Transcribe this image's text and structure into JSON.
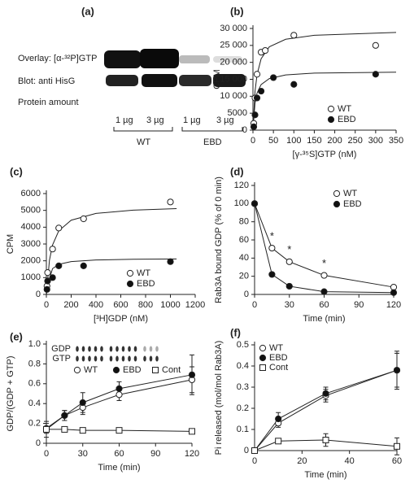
{
  "blot": {
    "label": "(a)",
    "rows": [
      "Overlay: [α-³²P]GTP",
      "Blot: anti HisG",
      "Protein amount"
    ],
    "lanes": [
      "1 µg",
      "3 µg",
      "1 µg",
      "3 µg"
    ],
    "groups": [
      "WT",
      "EBD"
    ]
  },
  "chart_data": [
    {
      "type": "scatter",
      "label": "(b)",
      "x_label": "[γ-³⁵S]GTP (nM)",
      "y_label": "CPM",
      "legend": "lower right",
      "xlim": [
        0,
        350
      ],
      "xticks": [
        0,
        50,
        100,
        150,
        200,
        250,
        300,
        350
      ],
      "ylim": [
        0,
        30000
      ],
      "yticks": [
        0,
        5000,
        {
          "value": 10000,
          "label": "10 000"
        },
        {
          "value": 15000,
          "label": "15 000"
        },
        {
          "value": 20000,
          "label": "20 000"
        },
        {
          "value": 25000,
          "label": "25 000"
        },
        {
          "value": 30000,
          "label": "30 000"
        }
      ],
      "series": [
        {
          "name": "WT",
          "marker": "open",
          "x": [
            2,
            5,
            10,
            20,
            30,
            100,
            300
          ],
          "values": [
            2000,
            9500,
            16500,
            23000,
            23500,
            28000,
            25000
          ]
        },
        {
          "name": "EBD",
          "marker": "filled",
          "x": [
            2,
            5,
            10,
            20,
            50,
            100,
            300
          ],
          "values": [
            1000,
            4500,
            9500,
            11500,
            15500,
            13500,
            16500
          ]
        },
        {
          "marker": "none",
          "line": true,
          "x": [
            0,
            5,
            10,
            20,
            40,
            80,
            150,
            350
          ],
          "values": [
            0,
            11350,
            16390,
            21070,
            24580,
            26820,
            28000,
            28840
          ]
        },
        {
          "marker": "none",
          "line": true,
          "x": [
            0,
            5,
            10,
            20,
            40,
            80,
            150,
            350
          ],
          "values": [
            0,
            7950,
            10940,
            13460,
            15220,
            16280,
            16830,
            17110
          ]
        }
      ]
    },
    {
      "type": "scatter",
      "label": "(c)",
      "x_label": "[³H]GDP (nM)",
      "y_label": "CPM",
      "legend": "lower right",
      "xlim": [
        0,
        1200
      ],
      "xticks": [
        0,
        200,
        400,
        600,
        800,
        1000,
        1200
      ],
      "ylim": [
        0,
        6000
      ],
      "yticks": [
        0,
        1000,
        2000,
        3000,
        4000,
        5000,
        6000
      ],
      "series": [
        {
          "name": "WT",
          "marker": "open",
          "x": [
            5,
            10,
            50,
            100,
            300,
            1000
          ],
          "values": [
            500,
            1300,
            2700,
            3950,
            4500,
            5500
          ]
        },
        {
          "name": "EBD",
          "marker": "filled",
          "x": [
            5,
            10,
            50,
            100,
            300,
            1000
          ],
          "values": [
            300,
            800,
            1000,
            1700,
            1700,
            1950
          ]
        },
        {
          "marker": "none",
          "line": true,
          "x": [
            0,
            25,
            50,
            100,
            200,
            400,
            700,
            1050
          ],
          "values": [
            0,
            2038,
            2944,
            3786,
            4417,
            4818,
            5014,
            5105
          ]
        },
        {
          "marker": "none",
          "line": true,
          "x": [
            0,
            25,
            50,
            100,
            200,
            400,
            700,
            1050
          ],
          "values": [
            0,
            956,
            1536,
            1792,
            1955,
            2048,
            2091,
            2110
          ]
        }
      ]
    },
    {
      "type": "line",
      "label": "(d)",
      "x_label": "Time (min)",
      "y_label": "Rab3A bound GDP (% of 0 min)",
      "legend": "upper right",
      "annotations": [
        "*",
        "*",
        "*"
      ],
      "xlim": [
        0,
        120
      ],
      "xticks": [
        0,
        30,
        60,
        90,
        120
      ],
      "ylim": [
        0,
        120
      ],
      "yticks": [
        0,
        20,
        40,
        60,
        80,
        100,
        120
      ],
      "series": [
        {
          "name": "WT",
          "marker": "open",
          "line": true,
          "x": [
            0,
            15,
            30,
            60,
            120
          ],
          "values": [
            100,
            51,
            36,
            21,
            8
          ]
        },
        {
          "name": "EBD",
          "marker": "filled",
          "line": true,
          "x": [
            0,
            15,
            30,
            60,
            120
          ],
          "values": [
            100,
            22,
            9,
            3,
            2
          ]
        }
      ]
    },
    {
      "type": "line",
      "label": "(e)",
      "x_label": "Time (min)",
      "y_label": "GDP/(GDP + GTP)",
      "legend": "upper left horizontal",
      "inset_labels": [
        "GDP",
        "GTP"
      ],
      "xlim": [
        0,
        120
      ],
      "xticks": [
        0,
        30,
        60,
        90,
        120
      ],
      "ylim": [
        0,
        1
      ],
      "yticks": [
        0,
        0.2,
        0.4,
        0.6,
        0.8,
        {
          "value": 1,
          "label": "1.0"
        }
      ],
      "series": [
        {
          "name": "WT",
          "marker": "open",
          "line": true,
          "x": [
            0,
            15,
            30,
            60,
            120
          ],
          "values": [
            0.14,
            0.28,
            0.36,
            0.49,
            0.64
          ],
          "errors": [
            0.08,
            0.05,
            0.07,
            0.06,
            0.13
          ]
        },
        {
          "name": "EBD",
          "marker": "filled",
          "line": true,
          "x": [
            0,
            15,
            30,
            60,
            120
          ],
          "values": [
            0.15,
            0.28,
            0.41,
            0.55,
            0.69
          ],
          "errors": [
            0.05,
            0.05,
            0.1,
            0.07,
            0.2
          ]
        },
        {
          "name": "Cont",
          "marker": "square",
          "line": true,
          "x": [
            0,
            15,
            30,
            60,
            120
          ],
          "values": [
            0.14,
            0.14,
            0.13,
            0.13,
            0.12
          ],
          "errors": [
            0.01,
            0.01,
            0.01,
            0.01,
            0.01
          ]
        }
      ]
    },
    {
      "type": "line",
      "label": "(f)",
      "x_label": "Time (min)",
      "y_label": "Pi released (mol/mol Rab3A)",
      "legend": "upper left",
      "xlim": [
        0,
        60
      ],
      "xticks": [
        0,
        20,
        40,
        60
      ],
      "ylim": [
        0,
        0.5
      ],
      "yticks": [
        0,
        0.1,
        0.2,
        0.3,
        0.4,
        0.5
      ],
      "series": [
        {
          "name": "WT",
          "marker": "open",
          "line": true,
          "x": [
            0,
            10,
            30,
            60
          ],
          "values": [
            0,
            0.13,
            0.26,
            0.38
          ],
          "errors": [
            0.01,
            0.02,
            0.03,
            0.08
          ]
        },
        {
          "name": "EBD",
          "marker": "filled",
          "line": true,
          "x": [
            0,
            10,
            30,
            60
          ],
          "values": [
            0,
            0.15,
            0.27,
            0.38
          ],
          "errors": [
            0.01,
            0.03,
            0.03,
            0.09
          ]
        },
        {
          "name": "Cont",
          "marker": "square",
          "line": true,
          "x": [
            0,
            10,
            30,
            60
          ],
          "values": [
            0,
            0.045,
            0.05,
            0.02
          ],
          "errors": [
            0.01,
            0.01,
            0.03,
            0.04
          ]
        }
      ]
    }
  ]
}
